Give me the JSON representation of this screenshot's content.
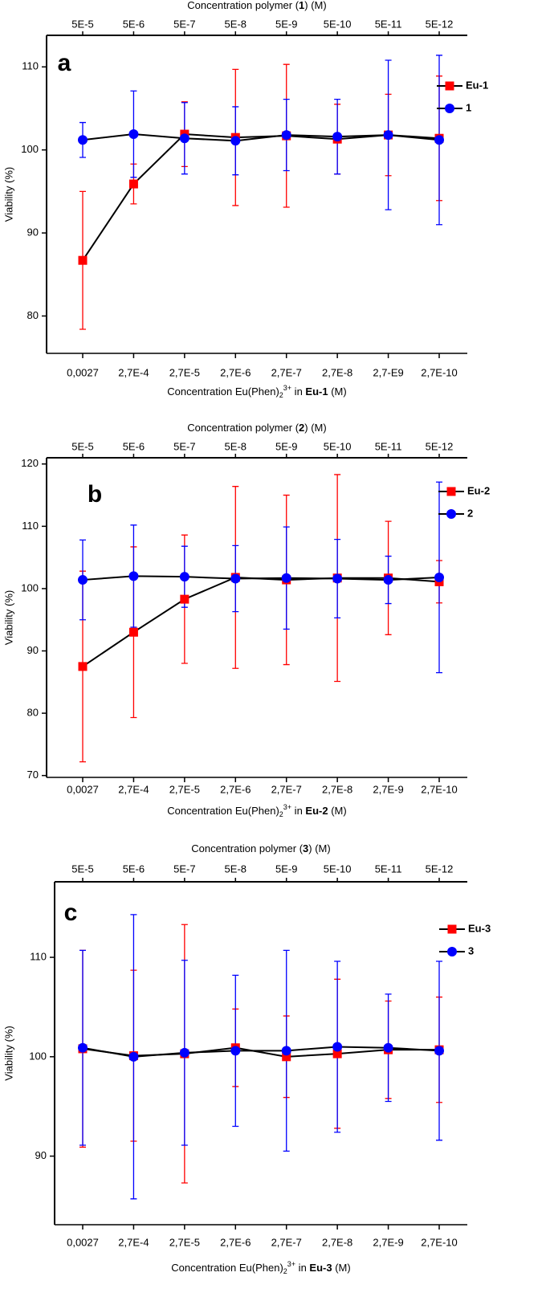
{
  "chart_data": [
    {
      "type": "line",
      "label": "a",
      "top_axis_label": [
        "Concentration polymer (",
        "1",
        ") (M)"
      ],
      "top_categories": [
        "5E-5",
        "5E-6",
        "5E-7",
        "5E-8",
        "5E-9",
        "5E-10",
        "5E-11",
        "5E-12"
      ],
      "categories": [
        "0,0027",
        "2,7E-4",
        "2,7E-5",
        "2,7E-6",
        "2,7E-7",
        "2,7E-8",
        "2,7-E9",
        "2,7E-10"
      ],
      "xlabel": [
        "Concentration Eu(Phen)",
        "2",
        "3+",
        " in ",
        "Eu-1",
        " (M)"
      ],
      "ylabel": "Viability (%)",
      "ylim": [
        75.5,
        113.8
      ],
      "yticks": [
        80,
        90,
        100,
        110
      ],
      "line_color": "#000000",
      "series": [
        {
          "name": "Eu-1",
          "color": "#ff0000",
          "marker": "square",
          "values": [
            86.7,
            95.9,
            101.9,
            101.5,
            101.7,
            101.3,
            101.8,
            101.4
          ],
          "errors": [
            8.3,
            2.4,
            3.9,
            8.2,
            8.6,
            4.2,
            4.9,
            7.5
          ]
        },
        {
          "name": "1",
          "color": "#0000ff",
          "marker": "circle",
          "values": [
            101.2,
            101.9,
            101.4,
            101.1,
            101.8,
            101.6,
            101.8,
            101.2
          ],
          "errors": [
            2.1,
            5.2,
            4.3,
            4.1,
            4.3,
            4.5,
            9.0,
            10.2
          ]
        }
      ]
    },
    {
      "type": "line",
      "label": "b",
      "top_axis_label": [
        "Concentration polymer (",
        "2",
        ") (M)"
      ],
      "top_categories": [
        "5E-5",
        "5E-6",
        "5E-7",
        "5E-8",
        "5E-9",
        "5E-10",
        "5E-11",
        "5E-12"
      ],
      "categories": [
        "0,0027",
        "2,7E-4",
        "2,7E-5",
        "2,7E-6",
        "2,7E-7",
        "2,7E-8",
        "2,7E-9",
        "2,7E-10"
      ],
      "xlabel": [
        "Concentration Eu(Phen)",
        "2",
        "3+",
        " in ",
        "Eu-2",
        " (M)"
      ],
      "ylabel": "Viability (%)",
      "ylim": [
        69.7,
        121
      ],
      "yticks": [
        70,
        80,
        90,
        100,
        110,
        120
      ],
      "line_color": "#000000",
      "series": [
        {
          "name": "Eu-2",
          "color": "#ff0000",
          "marker": "square",
          "values": [
            87.5,
            93.0,
            98.3,
            101.8,
            101.4,
            101.7,
            101.7,
            101.1
          ],
          "errors": [
            15.3,
            13.7,
            10.3,
            14.6,
            13.6,
            16.6,
            9.1,
            3.4
          ]
        },
        {
          "name": "2",
          "color": "#0000ff",
          "marker": "circle",
          "values": [
            101.4,
            102.0,
            101.9,
            101.6,
            101.7,
            101.6,
            101.4,
            101.8
          ],
          "errors": [
            6.4,
            8.2,
            4.9,
            5.3,
            8.2,
            6.3,
            3.8,
            15.3
          ]
        }
      ]
    },
    {
      "type": "line",
      "label": "c",
      "top_axis_label": [
        "Concentration polymer (",
        "3",
        ") (M)"
      ],
      "top_categories": [
        "5E-5",
        "5E-6",
        "5E-7",
        "5E-8",
        "5E-9",
        "5E-10",
        "5E-11",
        "5E-12"
      ],
      "categories": [
        "0,0027",
        "2,7E-4",
        "2,7E-5",
        "2,7E-6",
        "2,7E-7",
        "2,7E-8",
        "2,7E-9",
        "2,7E-10"
      ],
      "xlabel": [
        "Concentration Eu(Phen)",
        "2",
        "3+",
        " in ",
        "Eu-3",
        " (M)"
      ],
      "ylabel": "Viability (%)",
      "ylim": [
        83.1,
        117.6
      ],
      "yticks": [
        90,
        100,
        110
      ],
      "line_color": "#000000",
      "series": [
        {
          "name": "Eu-3",
          "color": "#ff0000",
          "marker": "square",
          "values": [
            100.8,
            100.1,
            100.3,
            100.9,
            100.0,
            100.3,
            100.7,
            100.7
          ],
          "errors": [
            9.9,
            8.6,
            13.0,
            3.9,
            4.1,
            7.5,
            4.9,
            5.3
          ]
        },
        {
          "name": "3",
          "color": "#0000ff",
          "marker": "circle",
          "values": [
            100.9,
            100.0,
            100.4,
            100.6,
            100.6,
            101.0,
            100.9,
            100.6
          ],
          "errors": [
            9.8,
            14.3,
            9.3,
            7.6,
            10.1,
            8.6,
            5.4,
            9.0
          ]
        }
      ]
    }
  ]
}
